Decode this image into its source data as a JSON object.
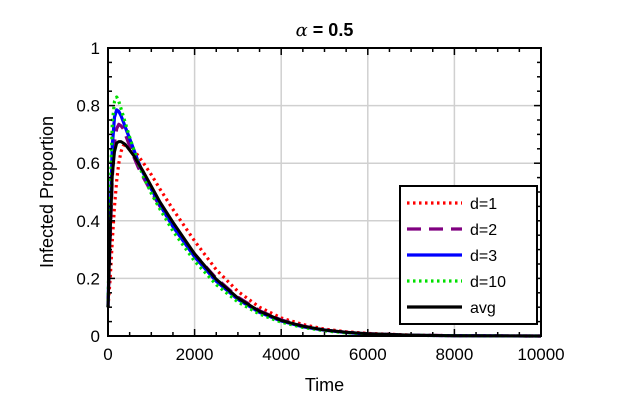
{
  "chart_data": {
    "type": "line",
    "title": "α = 0.5",
    "xlabel": "Time",
    "ylabel": "Infected Proportion",
    "xlim": [
      0,
      10000
    ],
    "ylim": [
      0,
      1
    ],
    "xticks": [
      0,
      2000,
      4000,
      6000,
      8000,
      10000
    ],
    "xtick_labels": [
      "0",
      "2000",
      "4000",
      "6000",
      "8000",
      "10000"
    ],
    "yticks": [
      0,
      0.2,
      0.4,
      0.6,
      0.8,
      1
    ],
    "ytick_labels": [
      "0",
      "0.2",
      "0.4",
      "0.6",
      "0.8",
      "1"
    ],
    "grid": true,
    "legend_position": "bottom-right",
    "x": [
      0,
      50,
      100,
      150,
      200,
      250,
      300,
      350,
      400,
      450,
      500,
      600,
      700,
      800,
      1000,
      1200,
      1500,
      2000,
      2500,
      3000,
      3500,
      4000,
      4500,
      5000,
      5500,
      6000,
      7000,
      8000,
      9000,
      10000
    ],
    "series": [
      {
        "name": "d=1",
        "color": "#ff0000",
        "style": "dotted",
        "values": [
          0.1,
          0.2,
          0.33,
          0.45,
          0.54,
          0.6,
          0.64,
          0.66,
          0.665,
          0.665,
          0.66,
          0.645,
          0.625,
          0.605,
          0.56,
          0.51,
          0.44,
          0.33,
          0.23,
          0.155,
          0.1,
          0.063,
          0.04,
          0.024,
          0.015,
          0.009,
          0.003,
          0.001,
          0.0003,
          0.0001
        ]
      },
      {
        "name": "d=2",
        "color": "#800080",
        "style": "dashed",
        "values": [
          0.1,
          0.34,
          0.55,
          0.67,
          0.72,
          0.735,
          0.73,
          0.72,
          0.7,
          0.68,
          0.66,
          0.62,
          0.585,
          0.555,
          0.5,
          0.45,
          0.385,
          0.285,
          0.2,
          0.135,
          0.088,
          0.056,
          0.035,
          0.021,
          0.013,
          0.008,
          0.003,
          0.001,
          0.0003,
          0.0001
        ]
      },
      {
        "name": "d=3",
        "color": "#0000ff",
        "style": "solid",
        "values": [
          0.1,
          0.42,
          0.66,
          0.76,
          0.785,
          0.78,
          0.765,
          0.745,
          0.725,
          0.705,
          0.685,
          0.645,
          0.605,
          0.57,
          0.51,
          0.455,
          0.38,
          0.275,
          0.19,
          0.127,
          0.082,
          0.052,
          0.032,
          0.02,
          0.012,
          0.007,
          0.0025,
          0.001,
          0.0003,
          0.0001
        ]
      },
      {
        "name": "d=10",
        "color": "#00e000",
        "style": "dotted",
        "values": [
          0.1,
          0.5,
          0.74,
          0.815,
          0.83,
          0.815,
          0.79,
          0.765,
          0.74,
          0.715,
          0.69,
          0.645,
          0.6,
          0.56,
          0.495,
          0.44,
          0.365,
          0.26,
          0.178,
          0.118,
          0.076,
          0.048,
          0.03,
          0.018,
          0.011,
          0.007,
          0.0025,
          0.001,
          0.0003,
          0.0001
        ]
      },
      {
        "name": "avg",
        "color": "#000000",
        "style": "solid",
        "values": [
          0.1,
          0.36,
          0.56,
          0.64,
          0.67,
          0.675,
          0.675,
          0.67,
          0.665,
          0.655,
          0.645,
          0.625,
          0.6,
          0.575,
          0.52,
          0.465,
          0.395,
          0.285,
          0.197,
          0.132,
          0.086,
          0.054,
          0.034,
          0.021,
          0.013,
          0.008,
          0.003,
          0.001,
          0.0003,
          0.0001
        ]
      }
    ]
  }
}
